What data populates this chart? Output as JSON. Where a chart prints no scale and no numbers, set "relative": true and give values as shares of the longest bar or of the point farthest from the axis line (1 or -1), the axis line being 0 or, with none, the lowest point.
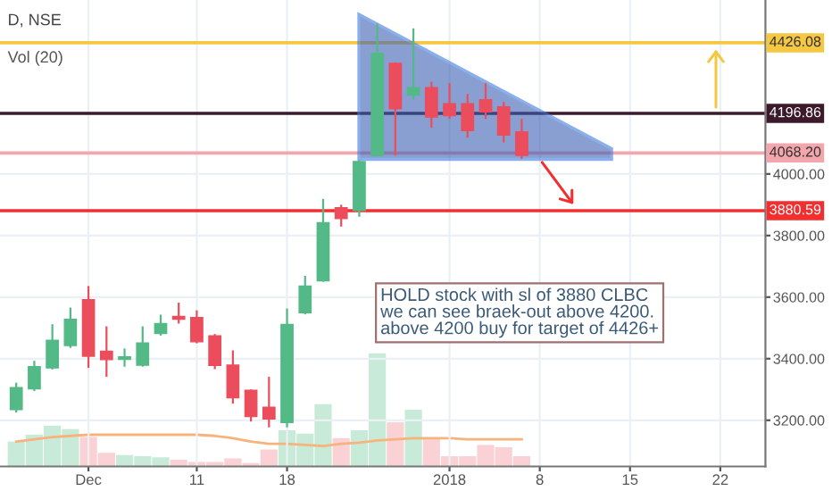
{
  "chart_data": [
    {
      "type": "candlestick",
      "title": "D, NSE",
      "categories": [
        null,
        null,
        null,
        null,
        "Dec",
        null,
        null,
        null,
        null,
        null,
        "11",
        null,
        null,
        null,
        null,
        "18",
        null,
        null,
        null,
        null,
        null,
        null,
        null,
        null,
        "2018",
        null,
        null,
        null,
        null,
        "8",
        null,
        null,
        null,
        null,
        "15",
        null,
        null,
        null,
        null,
        "22",
        null,
        null
      ],
      "ohlc": [
        [
          3235,
          3322,
          3225,
          3306
        ],
        [
          3302,
          3393,
          3295,
          3374
        ],
        [
          3370,
          3512,
          3365,
          3460
        ],
        [
          3443,
          3566,
          3435,
          3528
        ],
        [
          3592,
          3636,
          3370,
          3408
        ],
        [
          3424,
          3505,
          3341,
          3397
        ],
        [
          3398,
          3433,
          3374,
          3406
        ],
        [
          3379,
          3505,
          3374,
          3451
        ],
        [
          3482,
          3543,
          3475,
          3514
        ],
        [
          3537,
          3582,
          3514,
          3528
        ],
        [
          3534,
          3557,
          3450,
          3455
        ],
        [
          3474,
          3480,
          3366,
          3378
        ],
        [
          3379,
          3427,
          3254,
          3273
        ],
        [
          3297,
          3300,
          3196,
          3212
        ],
        [
          3242,
          3341,
          3177,
          3204
        ],
        [
          3193,
          3563,
          3177,
          3511
        ],
        [
          3549,
          3669,
          3544,
          3636
        ],
        [
          3653,
          3919,
          3650,
          3842
        ],
        [
          3890,
          3900,
          3829,
          3855
        ],
        [
          3881,
          4045,
          3861,
          4040
        ],
        [
          4060,
          4488,
          4058,
          4392
        ],
        [
          4359,
          4362,
          4060,
          4212
        ],
        [
          4257,
          4473,
          4241,
          4280
        ],
        [
          4280,
          4299,
          4150,
          4185
        ],
        [
          4228,
          4295,
          4179,
          4189
        ],
        [
          4228,
          4260,
          4118,
          4141
        ],
        [
          4241,
          4295,
          4179,
          4202
        ],
        [
          4218,
          4234,
          4102,
          4126
        ],
        [
          4137,
          4179,
          4049,
          4060
        ],
        null,
        null,
        null,
        null,
        null,
        null,
        null,
        null,
        null,
        null,
        null,
        null,
        null
      ],
      "colors": [
        "#53b987",
        "#53b987",
        "#53b987",
        "#53b987",
        "#eb4d5c",
        "#eb4d5c",
        "#53b987",
        "#53b987",
        "#53b987",
        "#eb4d5c",
        "#eb4d5c",
        "#eb4d5c",
        "#eb4d5c",
        "#eb4d5c",
        "#eb4d5c",
        "#53b987",
        "#53b987",
        "#53b987",
        "#eb4d5c",
        "#53b987",
        "#53b987",
        "#eb4d5c",
        "#53b987",
        "#eb4d5c",
        "#eb4d5c",
        "#eb4d5c",
        "#eb4d5c",
        "#eb4d5c",
        "#eb4d5c",
        null,
        null,
        null,
        null,
        null,
        null,
        null,
        null,
        null,
        null,
        null,
        null,
        null
      ],
      "ylim": [
        3050,
        4565
      ],
      "yticks": [
        {
          "value": 3200,
          "label": "3200.00"
        },
        {
          "value": 3400,
          "label": "3400.00"
        },
        {
          "value": 3600,
          "label": "3600.00"
        },
        {
          "value": 3800,
          "label": "3800.00"
        },
        {
          "value": 4000,
          "label": "4000.00"
        }
      ],
      "ref_lines": [
        {
          "axis": "y",
          "value": 4426.08,
          "label": "4426.08",
          "color": "#f5c842"
        },
        {
          "axis": "y",
          "value": 4196.86,
          "label": "4196.86",
          "color": "#3c1a2c"
        },
        {
          "axis": "y",
          "value": 4068.2,
          "label": "4068.20",
          "color": "#f4a6ad"
        },
        {
          "axis": "y",
          "value": 3880.59,
          "label": "3880.59",
          "color": "#f22e2e"
        }
      ],
      "annotations": [
        "Vol (20)",
        "HOLD stock with sl of 3880 CLBC\nwe can see braek-out above 4200.\nabove 4200 buy for target of 4426+"
      ],
      "grid": true
    },
    {
      "type": "bar",
      "relative": true,
      "categories": [
        null,
        null,
        null,
        null,
        null,
        null,
        null,
        null,
        null,
        null,
        null,
        null,
        null,
        null,
        null,
        null,
        null,
        null,
        null,
        null,
        null,
        null,
        null,
        null,
        null,
        null,
        null,
        null,
        null,
        null,
        null,
        null,
        null,
        null,
        null,
        null,
        null,
        null,
        null,
        null,
        null,
        null
      ],
      "series": [
        {
          "type": "bar",
          "values": [
            0.22,
            0.28,
            0.36,
            0.33,
            0.26,
            0.12,
            0.1,
            0.09,
            0.08,
            0.06,
            0.04,
            0.04,
            0.07,
            0.03,
            0.15,
            0.32,
            0.29,
            0.55,
            0.25,
            0.32,
            1,
            0.39,
            0.5,
            0.24,
            0.09,
            0.09,
            0.19,
            0.17,
            0.09,
            null,
            null,
            null,
            null,
            null,
            null,
            null,
            null,
            null,
            null,
            null,
            null,
            null
          ],
          "colors": [
            "#b5e3cb",
            "#b5e3cb",
            "#b5e3cb",
            "#b5e3cb",
            "#f8c1c5",
            "#f8c1c5",
            "#b5e3cb",
            "#b5e3cb",
            "#b5e3cb",
            "#f8c1c5",
            "#f8c1c5",
            "#f8c1c5",
            "#f8c1c5",
            "#f8c1c5",
            "#f8c1c5",
            "#b5e3cb",
            "#b5e3cb",
            "#b5e3cb",
            "#f8c1c5",
            "#b5e3cb",
            "#b5e3cb",
            "#f8c1c5",
            "#b5e3cb",
            "#f8c1c5",
            "#f8c1c5",
            "#f8c1c5",
            "#f8c1c5",
            "#f8c1c5",
            "#f8c1c5",
            null,
            null,
            null,
            null,
            null,
            null,
            null,
            null,
            null,
            null,
            null,
            null,
            null
          ]
        },
        {
          "type": "line",
          "color": "#f7b37c",
          "values": [
            0.22,
            0.24,
            0.26,
            0.27,
            0.28,
            0.28,
            0.28,
            0.28,
            0.28,
            0.28,
            0.28,
            0.27,
            0.25,
            0.22,
            0.2,
            0.2,
            0.19,
            0.18,
            0.2,
            0.21,
            0.23,
            0.24,
            0.25,
            0.25,
            0.25,
            0.24,
            0.24,
            0.24,
            0.24,
            null,
            null,
            null,
            null,
            null,
            null,
            null,
            null,
            null,
            null,
            null,
            null,
            null
          ]
        }
      ]
    }
  ]
}
